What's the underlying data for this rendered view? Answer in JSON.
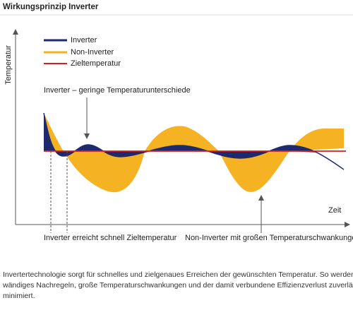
{
  "header": {
    "title": "Wirkungsprinzip Inverter"
  },
  "diagram": {
    "y_axis_label": "Temperatur",
    "x_axis_label": "Zeit",
    "legend": [
      "Inverter",
      "Non-Inverter",
      "Zieltemperatur"
    ],
    "annotations": [
      "Inverter – geringe Temperaturunterschiede",
      "Inverter erreicht schnell Zieltemperatur",
      "Non-Inverter mit großen Temperaturschwankungen"
    ]
  },
  "paragraph": [
    "Invertertechnologie sorgt für schnelles und zielgenaues Erreichen der gewünschten Temperatur. So werden auf-",
    "wändiges Nachregeln, große Temperaturschwankungen und der damit verbundene Effizienzverlust zuverlässig",
    "minimiert."
  ]
}
